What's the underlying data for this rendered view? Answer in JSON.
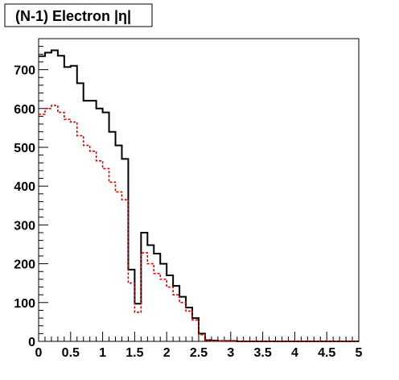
{
  "chart_data": {
    "type": "histogram",
    "title": "(N-1) Electron |η|",
    "xlabel": "",
    "ylabel": "",
    "xlim": [
      0,
      5
    ],
    "ylim": [
      0,
      780
    ],
    "bin_width": 0.1,
    "x_ticks": [
      "0",
      "0.5",
      "1",
      "1.5",
      "2",
      "2.5",
      "3",
      "3.5",
      "4",
      "4.5",
      "5"
    ],
    "x_tick_values": [
      0,
      0.5,
      1,
      1.5,
      2,
      2.5,
      3,
      3.5,
      4,
      4.5,
      5
    ],
    "y_ticks": [
      "0",
      "100",
      "200",
      "300",
      "400",
      "500",
      "600",
      "700"
    ],
    "y_tick_values": [
      0,
      100,
      200,
      300,
      400,
      500,
      600,
      700
    ],
    "grid": false,
    "legend": "none",
    "series": [
      {
        "color": "#000000",
        "style": "solid",
        "bin_edges": [
          0,
          0.1,
          0.2,
          0.3,
          0.4,
          0.5,
          0.6,
          0.7,
          0.8,
          0.9,
          1.0,
          1.1,
          1.2,
          1.3,
          1.4,
          1.5,
          1.6,
          1.7,
          1.8,
          1.9,
          2.0,
          2.1,
          2.2,
          2.3,
          2.4,
          2.5,
          2.6,
          2.7,
          2.8,
          2.9,
          3.0,
          3.1,
          3.2,
          3.3,
          3.4,
          3.5,
          3.6,
          3.7,
          3.8,
          3.9,
          4.0,
          4.1,
          4.2,
          4.3,
          4.4,
          4.5,
          4.6,
          4.7,
          4.8,
          4.9,
          5.0
        ],
        "values": [
          735,
          744,
          750,
          736,
          707,
          710,
          665,
          620,
          620,
          600,
          590,
          540,
          505,
          470,
          185,
          97,
          280,
          248,
          226,
          200,
          170,
          143,
          115,
          87,
          60,
          20,
          3,
          2,
          1,
          1,
          1,
          0,
          0,
          0,
          0,
          0,
          0,
          0,
          0,
          0,
          0,
          0,
          0,
          0,
          0,
          0,
          0,
          0,
          0,
          0
        ]
      },
      {
        "color": "#e00000",
        "style": "dashed",
        "bin_edges": [
          0,
          0.1,
          0.2,
          0.3,
          0.4,
          0.5,
          0.6,
          0.7,
          0.8,
          0.9,
          1.0,
          1.1,
          1.2,
          1.3,
          1.4,
          1.5,
          1.6,
          1.7,
          1.8,
          1.9,
          2.0,
          2.1,
          2.2,
          2.3,
          2.4,
          2.5,
          2.6,
          2.7,
          2.8,
          2.9,
          3.0,
          3.1,
          3.2,
          3.3,
          3.4,
          3.5,
          3.6,
          3.7,
          3.8,
          3.9,
          4.0,
          4.1,
          4.2,
          4.3,
          4.4,
          4.5,
          4.6,
          4.7,
          4.8,
          4.9,
          5.0
        ],
        "values": [
          585,
          600,
          608,
          590,
          572,
          565,
          530,
          505,
          490,
          465,
          445,
          410,
          385,
          365,
          150,
          75,
          228,
          200,
          175,
          160,
          140,
          120,
          100,
          78,
          55,
          17,
          2,
          1,
          1,
          0,
          0,
          0,
          0,
          0,
          0,
          0,
          0,
          0,
          0,
          0,
          0,
          0,
          0,
          0,
          0,
          0,
          0,
          0,
          0,
          0
        ]
      }
    ]
  }
}
